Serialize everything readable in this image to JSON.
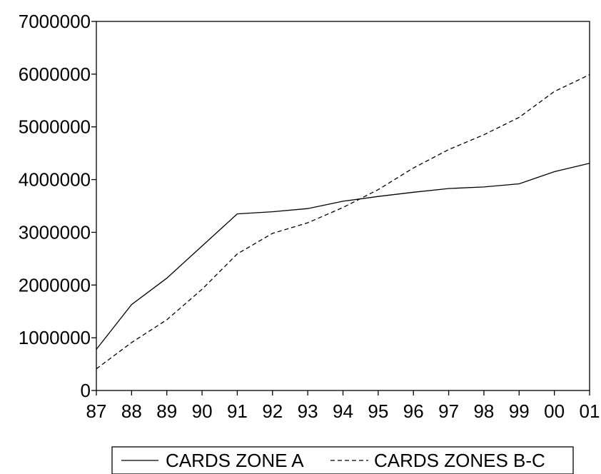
{
  "chart_data": {
    "type": "line",
    "title": "",
    "xlabel": "",
    "ylabel": "",
    "categories": [
      "87",
      "88",
      "89",
      "90",
      "91",
      "92",
      "93",
      "94",
      "95",
      "96",
      "97",
      "98",
      "99",
      "00",
      "01"
    ],
    "ylim": [
      0,
      7000000
    ],
    "yticks": [
      0,
      1000000,
      2000000,
      3000000,
      4000000,
      5000000,
      6000000,
      7000000
    ],
    "ytick_labels": [
      "0",
      "1000000",
      "2000000",
      "3000000",
      "4000000",
      "5000000",
      "6000000",
      "7000000"
    ],
    "grid": false,
    "legend_position": "bottom-center",
    "series": [
      {
        "name": "CARDS ZONE A",
        "style": "solid",
        "color": "#000000",
        "values": [
          780000,
          1630000,
          2130000,
          2740000,
          3350000,
          3390000,
          3450000,
          3590000,
          3680000,
          3760000,
          3830000,
          3860000,
          3920000,
          4150000,
          4310000
        ]
      },
      {
        "name": "CARDS ZONES B-C",
        "style": "dashed",
        "color": "#000000",
        "values": [
          410000,
          910000,
          1340000,
          1920000,
          2590000,
          2980000,
          3180000,
          3470000,
          3810000,
          4220000,
          4570000,
          4850000,
          5180000,
          5670000,
          5990000
        ]
      }
    ]
  }
}
